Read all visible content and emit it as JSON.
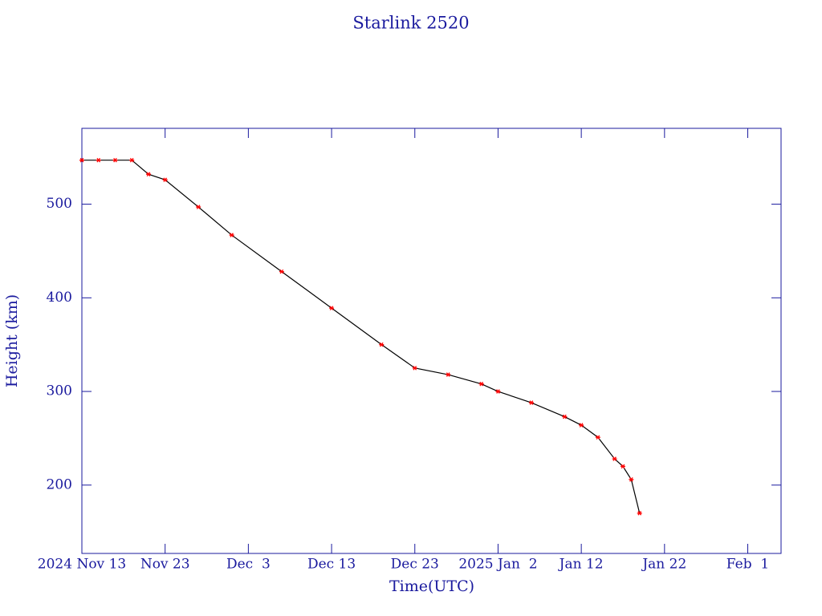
{
  "chart_data": {
    "type": "line",
    "title": "Starlink 2520",
    "xlabel": "Time(UTC)",
    "ylabel": "Height (km)",
    "x": [
      "2024-11-13",
      "2024-11-15",
      "2024-11-17",
      "2024-11-19",
      "2024-11-21",
      "2024-11-23",
      "2024-11-27",
      "2024-12-01",
      "2024-12-07",
      "2024-12-13",
      "2024-12-19",
      "2024-12-23",
      "2024-12-27",
      "2024-12-31",
      "2025-01-02",
      "2025-01-06",
      "2025-01-10",
      "2025-01-12",
      "2025-01-14",
      "2025-01-16",
      "2025-01-17",
      "2025-01-18",
      "2025-01-19"
    ],
    "series": [
      {
        "color": "#ff0000",
        "line_color": "#000000",
        "values": [
          547,
          547,
          547,
          547,
          532,
          526,
          497,
          467,
          428,
          389,
          350,
          325,
          318,
          308,
          300,
          288,
          273,
          264,
          251,
          228,
          220,
          206,
          170
        ]
      }
    ],
    "xlim": [
      "2024-11-13",
      "2025-02-05"
    ],
    "xticks": [
      {
        "value": "2024-11-13",
        "label": "2024 Nov 13"
      },
      {
        "value": "2024-11-23",
        "label": "Nov 23"
      },
      {
        "value": "2024-12-03",
        "label": "Dec  3"
      },
      {
        "value": "2024-12-13",
        "label": "Dec 13"
      },
      {
        "value": "2024-12-23",
        "label": "Dec 23"
      },
      {
        "value": "2025-01-02",
        "label": "2025 Jan  2"
      },
      {
        "value": "2025-01-12",
        "label": "Jan 12"
      },
      {
        "value": "2025-01-22",
        "label": "Jan 22"
      },
      {
        "value": "2025-02-01",
        "label": "Feb  1"
      }
    ],
    "ylim": [
      127,
      581
    ],
    "yticks": [
      200,
      300,
      400,
      500
    ],
    "grid": false,
    "axis_color": "#1a1a9e"
  }
}
